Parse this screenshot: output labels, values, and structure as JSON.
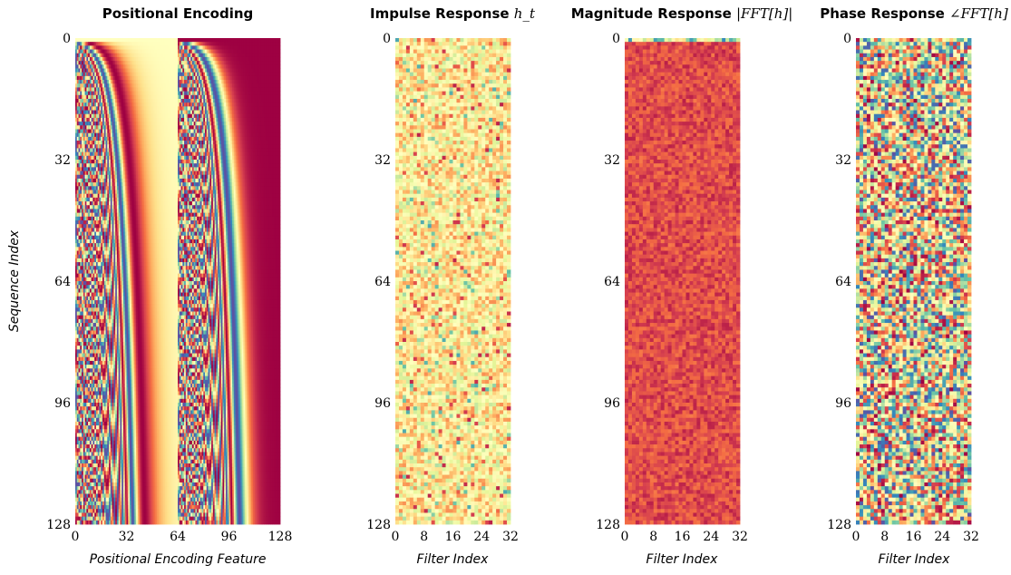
{
  "figure": {
    "ylabel": "Sequence Index",
    "colormap": "Spectral_r",
    "colormap_stops": [
      "#5e4fa2",
      "#3288bd",
      "#66c2a5",
      "#abdda4",
      "#e6f598",
      "#ffffbf",
      "#fee08b",
      "#fdae61",
      "#f46d43",
      "#d53e4f",
      "#9e0142"
    ]
  },
  "chart_data": [
    {
      "type": "heatmap",
      "title": "Positional Encoding",
      "title_math": "",
      "xlabel": "Positional Encoding Feature",
      "rows": 128,
      "cols": 128,
      "xticks": [
        "0",
        "32",
        "64",
        "96",
        "128"
      ],
      "yticks": [
        "0",
        "32",
        "64",
        "96",
        "128"
      ],
      "pattern": "sinusoidal-positional-encoding"
    },
    {
      "type": "heatmap",
      "title": "Impulse Response ",
      "title_math": "h_t",
      "xlabel": "Filter Index",
      "rows": 128,
      "cols": 32,
      "xticks": [
        "0",
        "8",
        "16",
        "24",
        "32"
      ],
      "yticks": [
        "0",
        "32",
        "64",
        "96",
        "128"
      ],
      "value_range": [
        0.35,
        0.75
      ],
      "pattern": "noise"
    },
    {
      "type": "heatmap",
      "title": "Magnitude Response ",
      "title_math": "|FFT[h]|",
      "xlabel": "Filter Index",
      "rows": 128,
      "cols": 32,
      "xticks": [
        "0",
        "8",
        "16",
        "24",
        "32"
      ],
      "yticks": [
        "0",
        "32",
        "64",
        "96",
        "128"
      ],
      "value_range": [
        0.78,
        0.95
      ],
      "pattern": "noise-with-dc-row"
    },
    {
      "type": "heatmap",
      "title": "Phase Response ",
      "title_math": "∠FFT[h]",
      "xlabel": "Filter Index",
      "rows": 128,
      "cols": 32,
      "xticks": [
        "0",
        "8",
        "16",
        "24",
        "32"
      ],
      "yticks": [
        "0",
        "32",
        "64",
        "96",
        "128"
      ],
      "value_range": [
        0.0,
        1.0
      ],
      "pattern": "uniform-noise"
    }
  ]
}
